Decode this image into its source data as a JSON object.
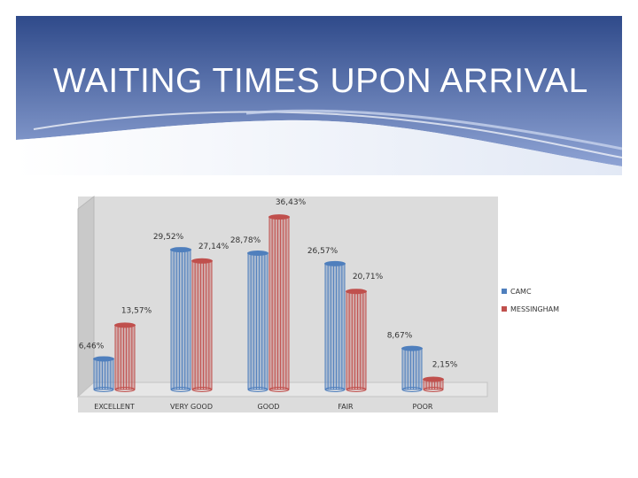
{
  "slide": {
    "title": "WAITING TIMES UPON ARRIVAL"
  },
  "colors": {
    "banner_top": "#2f4a8a",
    "banner_bottom": "#8ea3d4",
    "chart_bg": "#dcdcdc",
    "series_1": "#4f7fbd",
    "series_2": "#c0504d"
  },
  "chart_data": {
    "type": "bar",
    "title": "",
    "xlabel": "",
    "ylabel": "",
    "ylim": [
      0,
      40
    ],
    "grid": false,
    "legend_position": "right",
    "categories": [
      "EXCELLENT",
      "VERY GOOD",
      "GOOD",
      "FAIR",
      "POOR"
    ],
    "series": [
      {
        "name": "CAMC",
        "values": [
          6.46,
          29.52,
          28.78,
          26.57,
          8.67
        ],
        "labels": [
          "6,46%",
          "29,52%",
          "28,78%",
          "26,57%",
          "8,67%"
        ]
      },
      {
        "name": "MESSINGHAM",
        "values": [
          13.57,
          27.14,
          36.43,
          20.71,
          2.15
        ],
        "labels": [
          "13,57%",
          "27,14%",
          "36,43%",
          "20,71%",
          "2,15%"
        ]
      }
    ]
  }
}
